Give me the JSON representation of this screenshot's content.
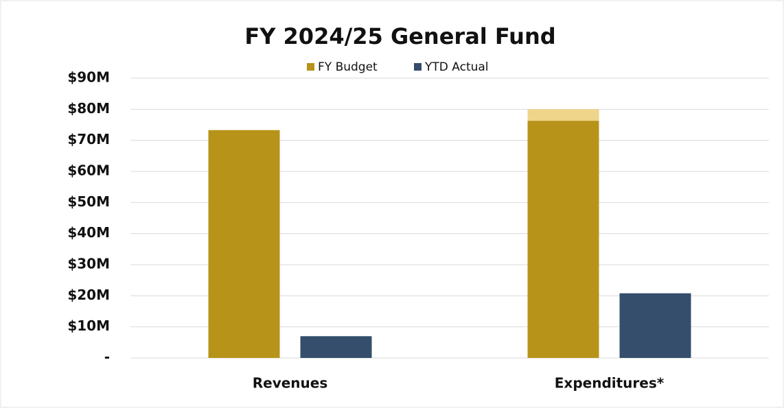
{
  "chart_data": {
    "type": "bar",
    "title": "FY 2024/25 General Fund",
    "categories": [
      "Revenues",
      "Expenditures*"
    ],
    "series": [
      {
        "name": "FY Budget",
        "color": "#b8931a",
        "values": [
          73.3,
          76.3
        ]
      },
      {
        "name": "YTD Actual",
        "color": "#344e6b",
        "values": [
          7.0,
          20.8
        ]
      },
      {
        "color": "#efd58a",
        "values": [
          null,
          3.7
        ],
        "stacked_on": 0
      }
    ],
    "ylim": [
      0,
      90
    ],
    "yticks": [
      {
        "value": 0,
        "label": "-"
      },
      {
        "value": 10,
        "label": "$10M"
      },
      {
        "value": 20,
        "label": "$20M"
      },
      {
        "value": 30,
        "label": "$30M"
      },
      {
        "value": 40,
        "label": "$40M"
      },
      {
        "value": 50,
        "label": "$50M"
      },
      {
        "value": 60,
        "label": "$60M"
      },
      {
        "value": 70,
        "label": "$70M"
      },
      {
        "value": 80,
        "label": "$80M"
      },
      {
        "value": 90,
        "label": "$90M"
      }
    ],
    "grid": true,
    "legend": "top"
  }
}
